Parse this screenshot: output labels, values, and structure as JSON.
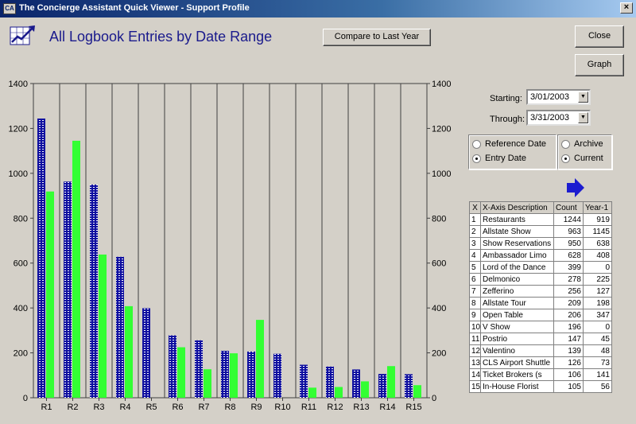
{
  "window": {
    "title": "The Concierge Assistant Quick Viewer - Support Profile",
    "app_icon": "CA",
    "close_glyph": "×"
  },
  "header": {
    "title": "All Logbook Entries by Date Range",
    "icon": "chart-icon"
  },
  "toolbar": {
    "compare_label": "Compare to Last Year",
    "close_label": "Close",
    "graph_label": "Graph"
  },
  "filters": {
    "starting_label": "Starting:",
    "starting_value": "3/01/2003",
    "through_label": "Through:",
    "through_value": "3/31/2003",
    "date_type": {
      "reference_label": "Reference Date",
      "entry_label": "Entry Date",
      "selected": "entry"
    },
    "data_source": {
      "archive_label": "Archive",
      "current_label": "Current",
      "selected": "current"
    }
  },
  "table": {
    "headers": [
      "X",
      "X-Axis Description",
      "Count",
      "Year-1"
    ],
    "rows": [
      [
        "1",
        "Restaurants",
        "1244",
        "919"
      ],
      [
        "2",
        "Allstate Show",
        "963",
        "1145"
      ],
      [
        "3",
        "Show Reservations",
        "950",
        "638"
      ],
      [
        "4",
        "Ambassador Limo",
        "628",
        "408"
      ],
      [
        "5",
        "Lord of the Dance",
        "399",
        "0"
      ],
      [
        "6",
        "Delmonico",
        "278",
        "225"
      ],
      [
        "7",
        "Zefferino",
        "256",
        "127"
      ],
      [
        "8",
        "Allstate Tour",
        "209",
        "198"
      ],
      [
        "9",
        "Open Table",
        "206",
        "347"
      ],
      [
        "10",
        "V Show",
        "196",
        "0"
      ],
      [
        "11",
        "Postrio",
        "147",
        "45"
      ],
      [
        "12",
        "Valentino",
        "139",
        "48"
      ],
      [
        "13",
        "CLS Airport Shuttle",
        "126",
        "73"
      ],
      [
        "14",
        "Ticket Brokers (s",
        "106",
        "141"
      ],
      [
        "15",
        "In-House Florist",
        "105",
        "56"
      ]
    ]
  },
  "colors": {
    "current_series": "#1010a0",
    "year1_series": "#33ff33",
    "title_text": "#1a1a8c",
    "arrow": "#1c1cd0"
  },
  "chart_data": {
    "type": "bar",
    "categories": [
      "R1",
      "R2",
      "R3",
      "R4",
      "R5",
      "R6",
      "R7",
      "R8",
      "R9",
      "R10",
      "R11",
      "R12",
      "R13",
      "R14",
      "R15"
    ],
    "series": [
      {
        "values": [
          1244,
          963,
          950,
          628,
          399,
          278,
          256,
          209,
          206,
          196,
          147,
          139,
          126,
          106,
          105
        ]
      },
      {
        "values": [
          919,
          1145,
          638,
          408,
          0,
          225,
          127,
          198,
          347,
          0,
          45,
          48,
          73,
          141,
          56
        ]
      }
    ],
    "ylim": [
      0,
      1400
    ],
    "y_ticks": [
      0,
      200,
      400,
      600,
      800,
      1000,
      1200,
      1400
    ],
    "y2_ticks": [
      0,
      200,
      400,
      600,
      800,
      1000,
      1200,
      1400
    ],
    "grid": "vertical"
  }
}
